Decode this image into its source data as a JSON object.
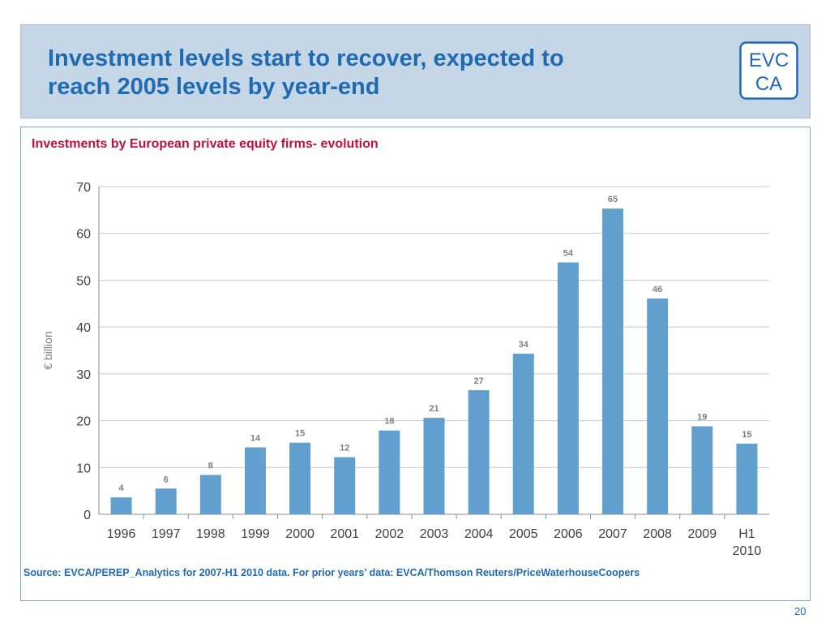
{
  "header": {
    "title_line1": "Investment levels start to recover, expected to",
    "title_line2": "reach 2005 levels by year-end"
  },
  "logo": {
    "text_top": "EVC",
    "text_bottom": "CA",
    "color": "#1f6ab1"
  },
  "chart_data": {
    "type": "bar",
    "title": "Investments by European private equity firms- evolution",
    "ylabel": "€ billion",
    "xlabel": "",
    "ylim": [
      0,
      70
    ],
    "yticks": [
      0,
      10,
      20,
      30,
      40,
      50,
      60,
      70
    ],
    "grid": true,
    "bar_color": "#609fce",
    "categories": [
      "1996",
      "1997",
      "1998",
      "1999",
      "2000",
      "2001",
      "2002",
      "2003",
      "2004",
      "2005",
      "2006",
      "2007",
      "2008",
      "2009",
      "H1 2010"
    ],
    "values": [
      3.6,
      5.5,
      8.4,
      14.3,
      15.3,
      12.2,
      17.9,
      20.6,
      26.5,
      34.3,
      53.8,
      65.3,
      46.1,
      18.8,
      15.1
    ],
    "data_labels": [
      "4",
      "6",
      "8",
      "14",
      "15",
      "12",
      "18",
      "21",
      "27",
      "34",
      "54",
      "65",
      "46",
      "19",
      "15"
    ]
  },
  "source": "Source: EVCA/PEREP_Analytics for 2007-H1 2010 data. For prior years’ data: EVCA/Thomson Reuters/PriceWaterhouseCoopers",
  "page_number": "20"
}
